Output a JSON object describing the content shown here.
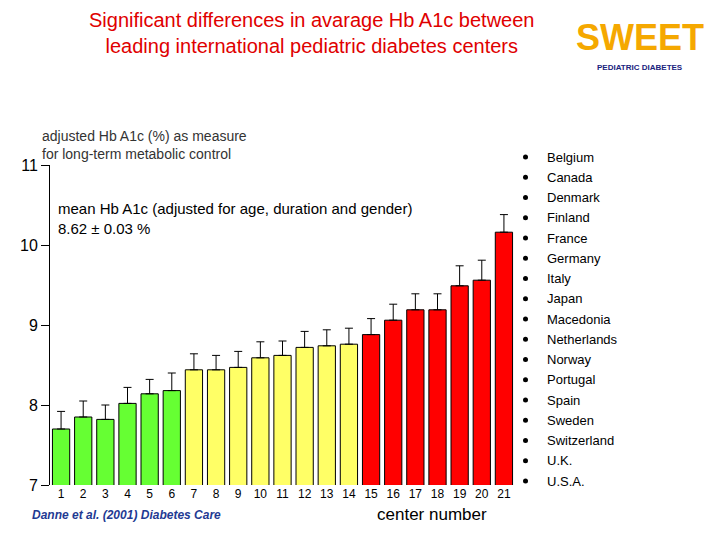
{
  "chart_data": {
    "type": "bar",
    "title": [
      "Significant differences in avarage Hb A1c between",
      "leading international pediatric diabetes centers"
    ],
    "y_label": [
      "adjusted Hb A1c (%) as measure",
      "for long-term metabolic control"
    ],
    "x_label": "center number",
    "annotation": [
      "mean Hb A1c (adjusted for age, duration and gender)",
      "8.62 ± 0.03 %"
    ],
    "source": "Danne et al. (2001) Diabetes Care",
    "logo": {
      "text": "SWEET",
      "subtitle": "PEDIATRIC DIABETES"
    },
    "countries": [
      "Belgium",
      "Canada",
      "Denmark",
      "Finland",
      "France",
      "Germany",
      "Italy",
      "Japan",
      "Macedonia",
      "Netherlands",
      "Norway",
      "Portugal",
      "Spain",
      "Sweden",
      "Switzerland",
      "U.K.",
      "U.S.A."
    ],
    "categories": [
      "1",
      "2",
      "3",
      "4",
      "5",
      "6",
      "7",
      "8",
      "9",
      "10",
      "11",
      "12",
      "13",
      "14",
      "15",
      "16",
      "17",
      "18",
      "19",
      "20",
      "21"
    ],
    "values": [
      7.7,
      7.85,
      7.82,
      8.02,
      8.14,
      8.18,
      8.44,
      8.44,
      8.47,
      8.59,
      8.62,
      8.72,
      8.74,
      8.76,
      8.88,
      9.06,
      9.19,
      9.19,
      9.49,
      9.56,
      10.16
    ],
    "errors": [
      0.22,
      0.2,
      0.18,
      0.2,
      0.18,
      0.22,
      0.2,
      0.18,
      0.2,
      0.2,
      0.18,
      0.2,
      0.2,
      0.2,
      0.2,
      0.2,
      0.2,
      0.2,
      0.25,
      0.25,
      0.22
    ],
    "colors": [
      "#66ff33",
      "#66ff33",
      "#66ff33",
      "#66ff33",
      "#66ff33",
      "#66ff33",
      "#ffff66",
      "#ffff66",
      "#ffff66",
      "#ffff66",
      "#ffff66",
      "#ffff66",
      "#ffff66",
      "#ffff66",
      "#ff0000",
      "#ff0000",
      "#ff0000",
      "#ff0000",
      "#ff0000",
      "#ff0000",
      "#ff0000"
    ],
    "ylim": [
      7,
      11
    ],
    "yticks": [
      7,
      8,
      9,
      10,
      11
    ],
    "grid": false
  }
}
